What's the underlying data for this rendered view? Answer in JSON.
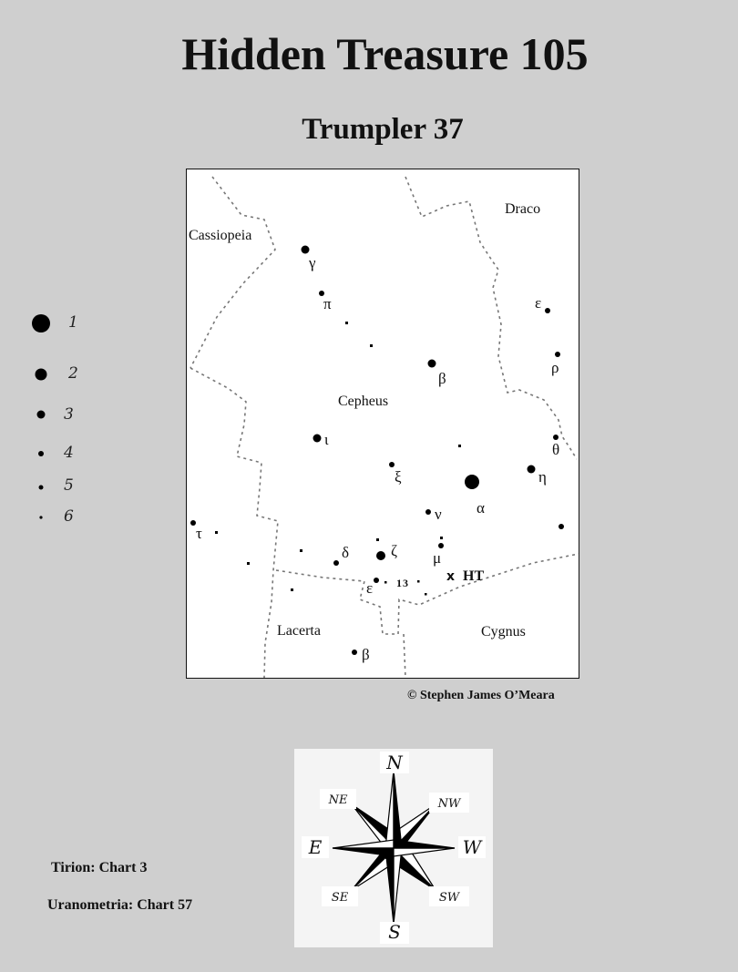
{
  "title": "Hidden Treasure 105",
  "subtitle": "Trumpler 37",
  "credit": "© Stephen James O’Meara",
  "legend": [
    {
      "magnitude": "1"
    },
    {
      "magnitude": "2"
    },
    {
      "magnitude": "3"
    },
    {
      "magnitude": "4"
    },
    {
      "magnitude": "5"
    },
    {
      "magnitude": "6"
    }
  ],
  "map": {
    "constellations": [
      "Cassiopeia",
      "Draco",
      "Cepheus",
      "Lacerta",
      "Cygnus"
    ],
    "target_label": "HT",
    "target_marker": "x",
    "star_labels": {
      "gamma": "γ",
      "pi": "π",
      "beta_cep": "β",
      "epsilon_cep": "ε",
      "rho": "ρ",
      "iota": "ι",
      "xi": "ξ",
      "alpha": "α",
      "eta": "η",
      "theta": "θ",
      "nu": "ν",
      "tau": "τ",
      "delta": "δ",
      "zeta": "ζ",
      "mu": "μ",
      "epsilon_low": "ε",
      "beta_lac": "β",
      "num13": "13"
    }
  },
  "compass": {
    "N": "N",
    "S": "S",
    "E": "E",
    "W": "W",
    "NE": "NE",
    "NW": "NW",
    "SE": "SE",
    "SW": "SW"
  },
  "references": {
    "tirion": "Tirion: Chart 3",
    "uranometria": "Uranometria: Chart 57"
  }
}
